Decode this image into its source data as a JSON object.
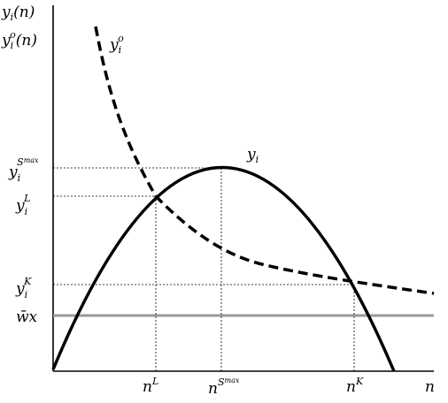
{
  "axes": {
    "y_label_line1": {
      "base": "y",
      "sub": "i",
      "arg": "(n)"
    },
    "y_label_line2": {
      "base": "y",
      "sub": "i",
      "sup": "o",
      "arg": "(n)"
    },
    "x_label": "n"
  },
  "curves": {
    "yi_label": {
      "base": "y",
      "sub": "i"
    },
    "yio_label": {
      "base": "y",
      "sub": "i",
      "sup": "o"
    }
  },
  "y_ticks": [
    {
      "id": "smax",
      "base": "y",
      "sub": "i",
      "sup": "S",
      "sup2": "max"
    },
    {
      "id": "L",
      "base": "y",
      "sub": "i",
      "sup": "L"
    },
    {
      "id": "K",
      "base": "y",
      "sub": "i",
      "sup": "K"
    },
    {
      "id": "wx",
      "text": "w̄x"
    }
  ],
  "x_ticks": [
    {
      "id": "L",
      "base": "n",
      "sup": "L"
    },
    {
      "id": "smax",
      "base": "n",
      "sup": "S",
      "sup2": "max"
    },
    {
      "id": "K",
      "base": "n",
      "sup": "K"
    }
  ],
  "colors": {
    "axis": "#000000",
    "curve": "#000000",
    "guide": "#000000",
    "wx_line": "#9a9a9a"
  }
}
